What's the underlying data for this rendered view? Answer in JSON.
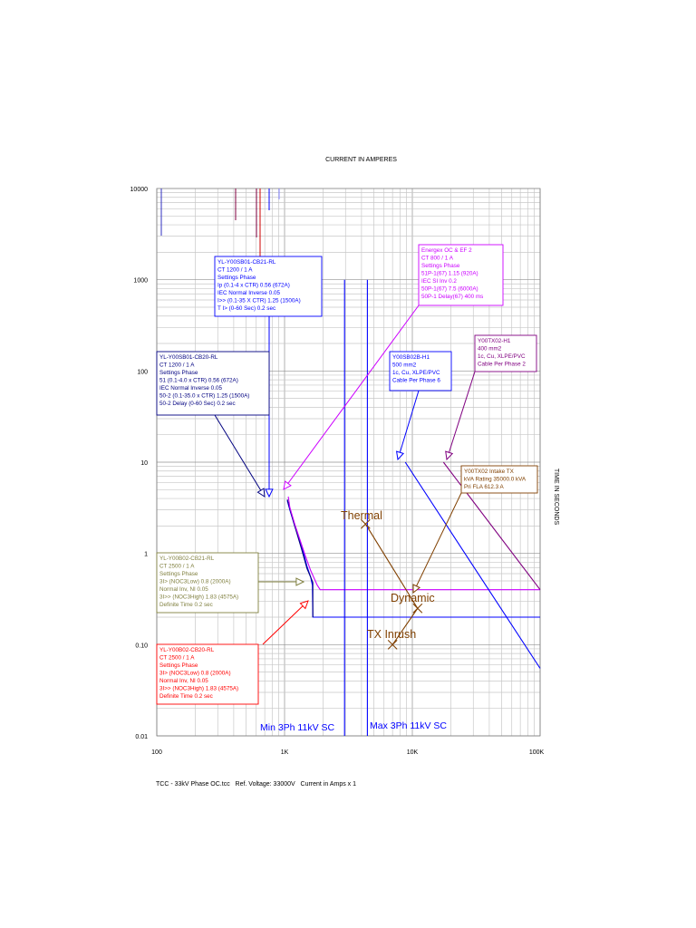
{
  "chart_data": {
    "type": "line",
    "title": "CURRENT IN AMPERES",
    "ylabel": "TIME IN SECONDS",
    "x_scale": "log",
    "y_scale": "log",
    "xlim": [
      100,
      100000
    ],
    "ylim": [
      0.01,
      10000
    ],
    "x_ticks": [
      "100",
      "1K",
      "10K",
      "100K"
    ],
    "y_ticks": [
      "10000",
      "1000",
      "100",
      "10",
      "1",
      "0.10",
      "0.01"
    ],
    "grid": true,
    "series": [
      {
        "name": "YL-Y00SB01-CB21-RL",
        "color": "#0000ff",
        "points": [
          [
            1050,
            3.8
          ],
          [
            1100,
            3.0
          ],
          [
            1200,
            2.0
          ],
          [
            1350,
            1.25
          ],
          [
            1500,
            0.72
          ],
          [
            1600,
            0.55
          ],
          [
            1650,
            0.45
          ],
          [
            1665,
            0.2
          ],
          [
            100000,
            0.2
          ]
        ]
      },
      {
        "name": "YL-Y00SB01-CB20-RL",
        "color": "#000080",
        "points": [
          [
            1050,
            3.9
          ],
          [
            1100,
            3.1
          ],
          [
            1200,
            2.0
          ],
          [
            1350,
            1.15
          ],
          [
            1500,
            0.68
          ],
          [
            1600,
            0.55
          ],
          [
            1665,
            0.48
          ],
          [
            1665,
            0.2
          ]
        ]
      },
      {
        "name": "Energex OC & EF 2",
        "color": "#cc00ff",
        "points": [
          [
            1070,
            4.2
          ],
          [
            1100,
            3.2
          ],
          [
            1200,
            2.1
          ],
          [
            1300,
            1.5
          ],
          [
            1450,
            0.95
          ],
          [
            1600,
            0.65
          ],
          [
            1800,
            0.45
          ],
          [
            1900,
            0.4
          ],
          [
            100000,
            0.4
          ]
        ]
      },
      {
        "name": "Y00SB02B-H1",
        "color": "#0000ff",
        "points": [
          [
            8800,
            10
          ],
          [
            100000,
            0.055
          ]
        ]
      },
      {
        "name": "Y00TX02-H1",
        "color": "#800080",
        "points": [
          [
            17500,
            10
          ],
          [
            100000,
            0.4
          ]
        ]
      },
      {
        "name": "Y00TX02 Intake TX",
        "color": "#804000",
        "points": [
          [
            4300,
            2.1
          ],
          [
            11000,
            0.25
          ],
          [
            7000,
            0.1
          ]
        ]
      },
      {
        "name": "Min 3Ph 11kV SC",
        "color": "#0000ff",
        "points": [
          [
            2950,
            0.01
          ],
          [
            2950,
            1000
          ]
        ]
      },
      {
        "name": "Max 3Ph 11kV SC",
        "color": "#0000ff",
        "points": [
          [
            4450,
            0.01
          ],
          [
            4450,
            1000
          ]
        ]
      }
    ],
    "annotations": {
      "thermal": "Thermal",
      "dynamic": "Dynamic",
      "tx_inrush": "TX Inrush",
      "min_sc": "Min 3Ph 11kV SC",
      "max_sc": "Max 3Ph 11kV SC"
    },
    "device_labels": [
      {
        "id": "cb21",
        "color": "#0000ff",
        "lines": [
          "YL-Y00SB01-CB21-RL",
          "CT 1200 / 1 A",
          "Settings Phase",
          "   Ip (0.1-4 x CTR) 0.56 (672A)",
          "   IEC Normal Inverse 0.05",
          "   I>> (0.1-35 X CTR) 1.25 (1500A)",
          "   T I> (0-60 Sec) 0.2 sec"
        ]
      },
      {
        "id": "cb20",
        "color": "#000080",
        "lines": [
          "YL-Y00SB01-CB20-RL",
          "CT 1200 / 1 A",
          "Settings Phase",
          "   51 (0.1-4.0 x CTR) 0.56 (672A)",
          "   IEC Normal Inverse 0.05",
          "   50-2 (0.1-35.0 x CTR) 1.25 (1500A)",
          "   50-2 Delay (0-60 Sec) 0.2 sec"
        ]
      },
      {
        "id": "energex",
        "color": "#cc00ff",
        "lines": [
          "Energex OC & EF 2",
          "CT 800 / 1 A",
          "Settings Phase",
          "   51P-1(67) 1.15 (920A)",
          "   IEC SI Inv 0.2",
          "   50P-1(67) 7.5 (6000A)",
          "   50P-1 Delay(67) 400 ms"
        ]
      },
      {
        "id": "sb02b",
        "color": "#0000ff",
        "lines": [
          "Y00SB02B-H1",
          "500 mm2",
          "1c, Cu, XLPE/PVC",
          "Cable Per Phase 6"
        ]
      },
      {
        "id": "tx02h1",
        "color": "#800080",
        "lines": [
          "Y00TX02-H1",
          "400 mm2",
          "1c, Cu, XLPE/PVC",
          "Cable Per Phase 2"
        ]
      },
      {
        "id": "intake",
        "color": "#804000",
        "lines": [
          "Y00TX02 Intake TX",
          "kVA Rating 35000.0 kVA",
          "Pri FLA 612.3 A"
        ]
      },
      {
        "id": "cb21b02",
        "color": "#808040",
        "lines": [
          "YL-Y00B02-CB21-RL",
          "CT 2500 / 1 A",
          "Settings Phase",
          "   3I> (NOC3Low) 0.8 (2000A)",
          "   Normal Inv, NI 0.05",
          "   3I>> (NOC3High) 1.83 (4575A)",
          "   Definite Time 0.2 sec"
        ]
      },
      {
        "id": "cb20b02",
        "color": "#ff0000",
        "lines": [
          "YL-Y00B02-CB20-RL",
          "CT 2500 / 1 A",
          "Settings Phase",
          "   3I> (NOC3Low) 0.8 (2000A)",
          "   Normal Inv, NI 0.05",
          "   3I>> (NOC3High) 1.83 (4575A)",
          "   Definite Time 0.2 sec"
        ]
      }
    ]
  },
  "footer": {
    "text": "TCC - 33kV Phase OC.tcc   Ref. Voltage: 33000V   Current in Amps x 1"
  }
}
